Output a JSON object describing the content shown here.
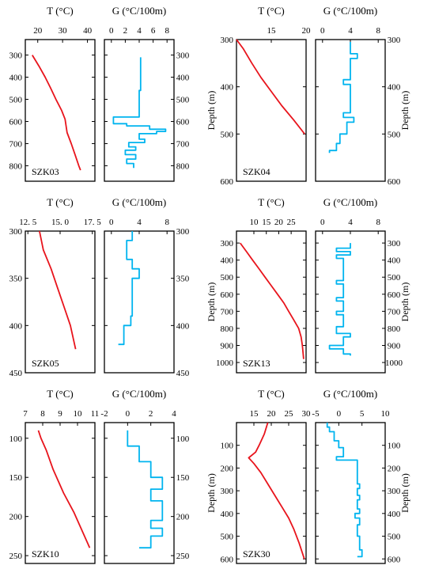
{
  "figure": {
    "temp_title": "T (°C)",
    "grad_title": "G (°C/100m)",
    "depth_label": "Depth (m)"
  },
  "chart_data": [
    {
      "id": "SZK03",
      "type": "line",
      "label": "SZK03",
      "depth_range": [
        230,
        870
      ],
      "depth_ticks": [
        300,
        400,
        500,
        600,
        700,
        800
      ],
      "depth_label": "",
      "temperature": {
        "xlim": [
          15,
          43
        ],
        "ticks": [
          20,
          30,
          40
        ],
        "tick_labels": [
          "20",
          "30",
          "40"
        ],
        "color": "#e8141c",
        "series": [
          [
            17.8,
            300
          ],
          [
            20.5,
            350
          ],
          [
            23.0,
            400
          ],
          [
            25.2,
            450
          ],
          [
            27.3,
            500
          ],
          [
            29.6,
            550
          ],
          [
            31.0,
            590
          ],
          [
            31.8,
            650
          ],
          [
            33.5,
            700
          ],
          [
            35.0,
            750
          ],
          [
            36.5,
            800
          ],
          [
            37.2,
            820
          ]
        ]
      },
      "gradient": {
        "xlim": [
          -1,
          9
        ],
        "ticks": [
          0,
          2,
          4,
          6,
          8
        ],
        "tick_labels": [
          "0",
          "2",
          "4",
          "6",
          "8"
        ],
        "color": "#00b4ef",
        "series": [
          [
            4.2,
            310
          ],
          [
            4.2,
            460
          ],
          [
            4.0,
            460
          ],
          [
            4.0,
            580
          ],
          [
            0.3,
            580
          ],
          [
            0.3,
            610
          ],
          [
            2.2,
            610
          ],
          [
            2.2,
            620
          ],
          [
            5.5,
            620
          ],
          [
            5.5,
            635
          ],
          [
            7.8,
            635
          ],
          [
            7.8,
            645
          ],
          [
            6.5,
            645
          ],
          [
            6.5,
            655
          ],
          [
            4.0,
            655
          ],
          [
            4.0,
            680
          ],
          [
            4.8,
            680
          ],
          [
            4.8,
            695
          ],
          [
            2.5,
            695
          ],
          [
            2.5,
            715
          ],
          [
            3.5,
            715
          ],
          [
            3.5,
            730
          ],
          [
            2.0,
            730
          ],
          [
            2.0,
            750
          ],
          [
            3.5,
            750
          ],
          [
            3.5,
            770
          ],
          [
            2.2,
            770
          ],
          [
            2.2,
            790
          ],
          [
            3.2,
            790
          ],
          [
            3.2,
            810
          ]
        ]
      }
    },
    {
      "id": "SZK04",
      "type": "line",
      "label": "SZK04",
      "depth_range": [
        300,
        600
      ],
      "depth_ticks": [
        300,
        400,
        500,
        600
      ],
      "depth_label": "Depth (m)",
      "temperature": {
        "xlim": [
          10,
          20
        ],
        "ticks": [
          15,
          20
        ],
        "tick_labels": [
          "15",
          "20"
        ],
        "color": "#e8141c",
        "series": [
          [
            10.0,
            300
          ],
          [
            11.0,
            320
          ],
          [
            12.2,
            350
          ],
          [
            13.5,
            380
          ],
          [
            15.0,
            410
          ],
          [
            16.5,
            440
          ],
          [
            18.2,
            470
          ],
          [
            19.8,
            500
          ]
        ]
      },
      "gradient": {
        "xlim": [
          -1,
          9
        ],
        "ticks": [
          0,
          4,
          8
        ],
        "tick_labels": [
          "0",
          "4",
          "8"
        ],
        "color": "#00b4ef",
        "series": [
          [
            4.0,
            305
          ],
          [
            4.0,
            330
          ],
          [
            5.0,
            330
          ],
          [
            5.0,
            340
          ],
          [
            4.0,
            340
          ],
          [
            4.0,
            385
          ],
          [
            3.0,
            385
          ],
          [
            3.0,
            395
          ],
          [
            4.0,
            395
          ],
          [
            4.0,
            455
          ],
          [
            3.0,
            455
          ],
          [
            3.0,
            465
          ],
          [
            4.5,
            465
          ],
          [
            4.5,
            475
          ],
          [
            3.5,
            475
          ],
          [
            3.5,
            500
          ],
          [
            2.5,
            500
          ],
          [
            2.5,
            520
          ],
          [
            2.0,
            520
          ],
          [
            2.0,
            535
          ],
          [
            1.0,
            535
          ],
          [
            1.0,
            540
          ]
        ]
      }
    },
    {
      "id": "SZK05",
      "type": "line",
      "label": "SZK05",
      "depth_range": [
        300,
        450
      ],
      "depth_ticks": [
        300,
        350,
        400,
        450
      ],
      "depth_label": "",
      "temperature": {
        "xlim": [
          12.3,
          17.7
        ],
        "ticks": [
          12.5,
          15.0,
          17.5
        ],
        "tick_labels": [
          "12. 5",
          "15. 0",
          "17. 5"
        ],
        "color": "#e8141c",
        "series": [
          [
            13.4,
            300
          ],
          [
            13.7,
            320
          ],
          [
            14.3,
            340
          ],
          [
            14.8,
            360
          ],
          [
            15.3,
            380
          ],
          [
            15.8,
            400
          ],
          [
            16.2,
            425
          ]
        ]
      },
      "gradient": {
        "xlim": [
          -1,
          9
        ],
        "ticks": [
          0,
          4,
          8
        ],
        "tick_labels": [
          "0",
          "4",
          "8"
        ],
        "color": "#00b4ef",
        "series": [
          [
            3.0,
            300
          ],
          [
            3.0,
            310
          ],
          [
            2.2,
            310
          ],
          [
            2.2,
            330
          ],
          [
            3.0,
            330
          ],
          [
            3.0,
            340
          ],
          [
            4.0,
            340
          ],
          [
            4.0,
            350
          ],
          [
            3.0,
            350
          ],
          [
            3.0,
            390
          ],
          [
            2.8,
            390
          ],
          [
            2.8,
            400
          ],
          [
            1.8,
            400
          ],
          [
            1.8,
            420
          ],
          [
            1.0,
            420
          ]
        ]
      }
    },
    {
      "id": "SZK13",
      "type": "line",
      "label": "SZK13",
      "depth_range": [
        230,
        1060
      ],
      "depth_ticks": [
        300,
        400,
        500,
        600,
        700,
        800,
        900,
        1000
      ],
      "depth_label": "Depth (m)",
      "temperature": {
        "xlim": [
          3,
          31
        ],
        "ticks": [
          10,
          15,
          20,
          25
        ],
        "tick_labels": [
          "10",
          "15",
          "20",
          "25"
        ],
        "color": "#e8141c",
        "series": [
          [
            4.5,
            300
          ],
          [
            7.0,
            350
          ],
          [
            9.5,
            400
          ],
          [
            12.0,
            450
          ],
          [
            14.5,
            500
          ],
          [
            17.0,
            550
          ],
          [
            19.5,
            600
          ],
          [
            22.0,
            650
          ],
          [
            24.0,
            700
          ],
          [
            26.0,
            750
          ],
          [
            28.0,
            800
          ],
          [
            29.0,
            850
          ],
          [
            29.5,
            900
          ],
          [
            30.0,
            980
          ]
        ]
      },
      "gradient": {
        "xlim": [
          -1,
          9
        ],
        "ticks": [
          0,
          4,
          8
        ],
        "tick_labels": [
          "0",
          "4",
          "8"
        ],
        "color": "#00b4ef",
        "series": [
          [
            4.0,
            300
          ],
          [
            4.0,
            330
          ],
          [
            2.0,
            330
          ],
          [
            2.0,
            350
          ],
          [
            4.0,
            350
          ],
          [
            4.0,
            370
          ],
          [
            2.0,
            370
          ],
          [
            2.0,
            390
          ],
          [
            3.0,
            390
          ],
          [
            3.0,
            520
          ],
          [
            2.0,
            520
          ],
          [
            2.0,
            540
          ],
          [
            3.0,
            540
          ],
          [
            3.0,
            620
          ],
          [
            2.0,
            620
          ],
          [
            2.0,
            640
          ],
          [
            3.0,
            640
          ],
          [
            3.0,
            700
          ],
          [
            2.0,
            700
          ],
          [
            2.0,
            720
          ],
          [
            3.0,
            720
          ],
          [
            3.0,
            790
          ],
          [
            2.0,
            790
          ],
          [
            2.0,
            830
          ],
          [
            4.0,
            830
          ],
          [
            4.0,
            850
          ],
          [
            3.0,
            850
          ],
          [
            3.0,
            900
          ],
          [
            1.0,
            900
          ],
          [
            1.0,
            920
          ],
          [
            3.0,
            920
          ],
          [
            3.0,
            950
          ],
          [
            4.0,
            950
          ],
          [
            4.0,
            960
          ]
        ]
      }
    },
    {
      "id": "SZK10",
      "type": "line",
      "label": "SZK10",
      "depth_range": [
        80,
        260
      ],
      "depth_ticks": [
        100,
        150,
        200,
        250
      ],
      "depth_label": "",
      "temperature": {
        "xlim": [
          7,
          11
        ],
        "ticks": [
          7,
          8,
          9,
          10,
          11
        ],
        "tick_labels": [
          "7",
          "8",
          "9",
          "10",
          "11"
        ],
        "color": "#e8141c",
        "series": [
          [
            7.75,
            90
          ],
          [
            7.9,
            100
          ],
          [
            8.2,
            115
          ],
          [
            8.6,
            140
          ],
          [
            9.2,
            170
          ],
          [
            9.8,
            195
          ],
          [
            10.2,
            215
          ],
          [
            10.6,
            235
          ],
          [
            10.7,
            240
          ]
        ]
      },
      "gradient": {
        "xlim": [
          -2,
          4
        ],
        "ticks": [
          -2,
          0,
          2,
          4
        ],
        "tick_labels": [
          "-2",
          "0",
          "2",
          "4"
        ],
        "color": "#00b4ef",
        "series": [
          [
            0.0,
            90
          ],
          [
            0.0,
            110
          ],
          [
            1.0,
            110
          ],
          [
            1.0,
            130
          ],
          [
            2.0,
            130
          ],
          [
            2.0,
            150
          ],
          [
            3.0,
            150
          ],
          [
            3.0,
            165
          ],
          [
            2.0,
            165
          ],
          [
            2.0,
            180
          ],
          [
            3.0,
            180
          ],
          [
            3.0,
            205
          ],
          [
            2.0,
            205
          ],
          [
            2.0,
            215
          ],
          [
            3.0,
            215
          ],
          [
            3.0,
            225
          ],
          [
            2.0,
            225
          ],
          [
            2.0,
            240
          ],
          [
            1.0,
            240
          ]
        ]
      }
    },
    {
      "id": "SZK30",
      "type": "line",
      "label": "SZK30",
      "depth_range": [
        0,
        620
      ],
      "depth_ticks": [
        100,
        200,
        300,
        400,
        500,
        600
      ],
      "depth_label": "Depth (m)",
      "temperature": {
        "xlim": [
          10,
          30
        ],
        "ticks": [
          15,
          20,
          25,
          30
        ],
        "tick_labels": [
          "15",
          "20",
          "25",
          "30"
        ],
        "color": "#e8141c",
        "series": [
          [
            19.0,
            0
          ],
          [
            18.0,
            50
          ],
          [
            16.5,
            100
          ],
          [
            15.5,
            130
          ],
          [
            13.5,
            155
          ],
          [
            15.0,
            180
          ],
          [
            17.0,
            220
          ],
          [
            19.0,
            270
          ],
          [
            21.0,
            320
          ],
          [
            23.0,
            370
          ],
          [
            25.0,
            420
          ],
          [
            26.5,
            470
          ],
          [
            28.0,
            530
          ],
          [
            29.5,
            600
          ]
        ]
      },
      "gradient": {
        "xlim": [
          -5,
          10
        ],
        "ticks": [
          -5,
          0,
          5,
          10
        ],
        "tick_labels": [
          "-5",
          "0",
          "5",
          "10"
        ],
        "color": "#00b4ef",
        "series": [
          [
            -2.5,
            0
          ],
          [
            -2.5,
            20
          ],
          [
            -2.0,
            20
          ],
          [
            -2.0,
            40
          ],
          [
            -1.0,
            40
          ],
          [
            -1.0,
            80
          ],
          [
            0.0,
            80
          ],
          [
            0.0,
            110
          ],
          [
            1.0,
            110
          ],
          [
            1.0,
            150
          ],
          [
            -0.5,
            150
          ],
          [
            -0.5,
            165
          ],
          [
            4.0,
            165
          ],
          [
            4.0,
            270
          ],
          [
            4.5,
            270
          ],
          [
            4.5,
            290
          ],
          [
            4.0,
            290
          ],
          [
            4.0,
            320
          ],
          [
            4.5,
            320
          ],
          [
            4.5,
            340
          ],
          [
            4.0,
            340
          ],
          [
            4.0,
            380
          ],
          [
            4.5,
            380
          ],
          [
            4.5,
            400
          ],
          [
            3.5,
            400
          ],
          [
            3.5,
            420
          ],
          [
            4.5,
            420
          ],
          [
            4.5,
            450
          ],
          [
            4.0,
            450
          ],
          [
            4.0,
            500
          ],
          [
            4.5,
            500
          ],
          [
            4.5,
            560
          ],
          [
            5.0,
            560
          ],
          [
            5.0,
            590
          ],
          [
            4.0,
            590
          ]
        ]
      }
    }
  ]
}
